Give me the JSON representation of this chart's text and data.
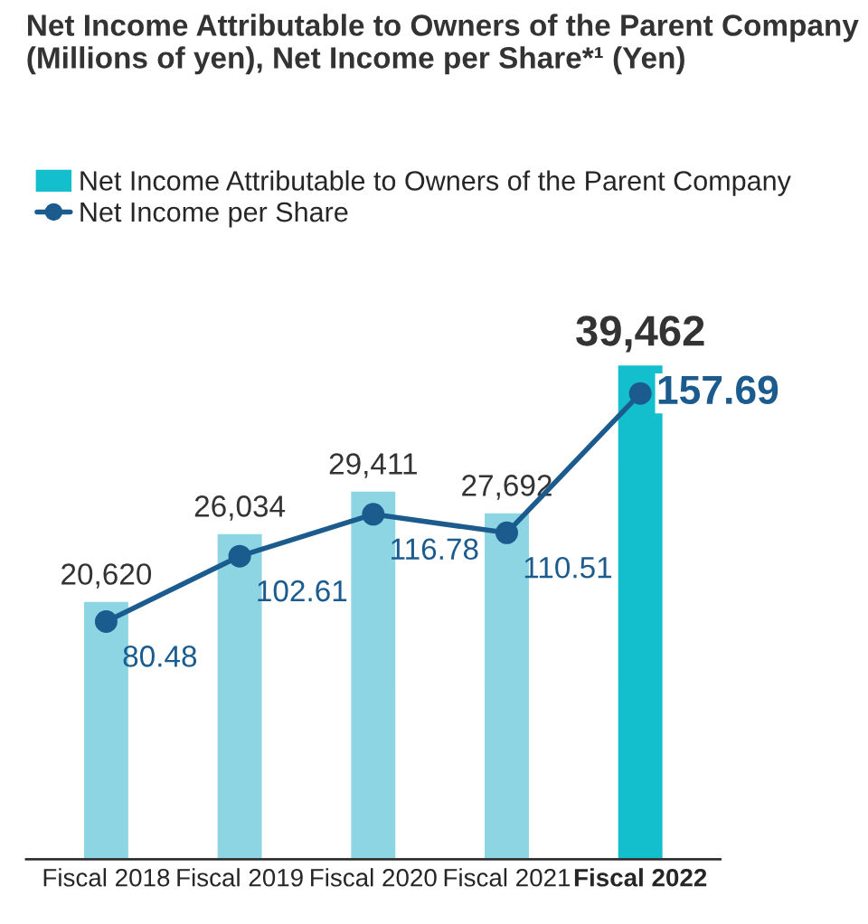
{
  "chart_data": {
    "type": "bar",
    "title": "Net Income Attributable to Owners of the Parent Company (Millions of yen), Net Income per Share*¹ (Yen)",
    "categories": [
      "Fiscal 2018",
      "Fiscal 2019",
      "Fiscal 2020",
      "Fiscal 2021",
      "Fiscal 2022"
    ],
    "series": [
      {
        "name": "Net Income Attributable to Owners of the Parent Company",
        "colors": [
          "#8dd5e3",
          "#8dd5e3",
          "#8dd5e3",
          "#8dd5e3",
          "#14bfcd"
        ],
        "color": "#14bfcd",
        "values": [
          20620,
          26034,
          29411,
          27692,
          39462
        ],
        "value_labels": [
          "20,620",
          "26,034",
          "29,411",
          "27,692",
          "39,462"
        ]
      },
      {
        "name": "Net Income per Share",
        "type": "line",
        "axis": "y2",
        "color": "#1b5b8e",
        "values": [
          80.48,
          102.61,
          116.78,
          110.51,
          157.69
        ],
        "value_labels": [
          "80.48",
          "102.61",
          "116.78",
          "110.51",
          "157.69"
        ]
      }
    ],
    "marker": "circle",
    "legend": "top",
    "tick_labels": "x"
  }
}
